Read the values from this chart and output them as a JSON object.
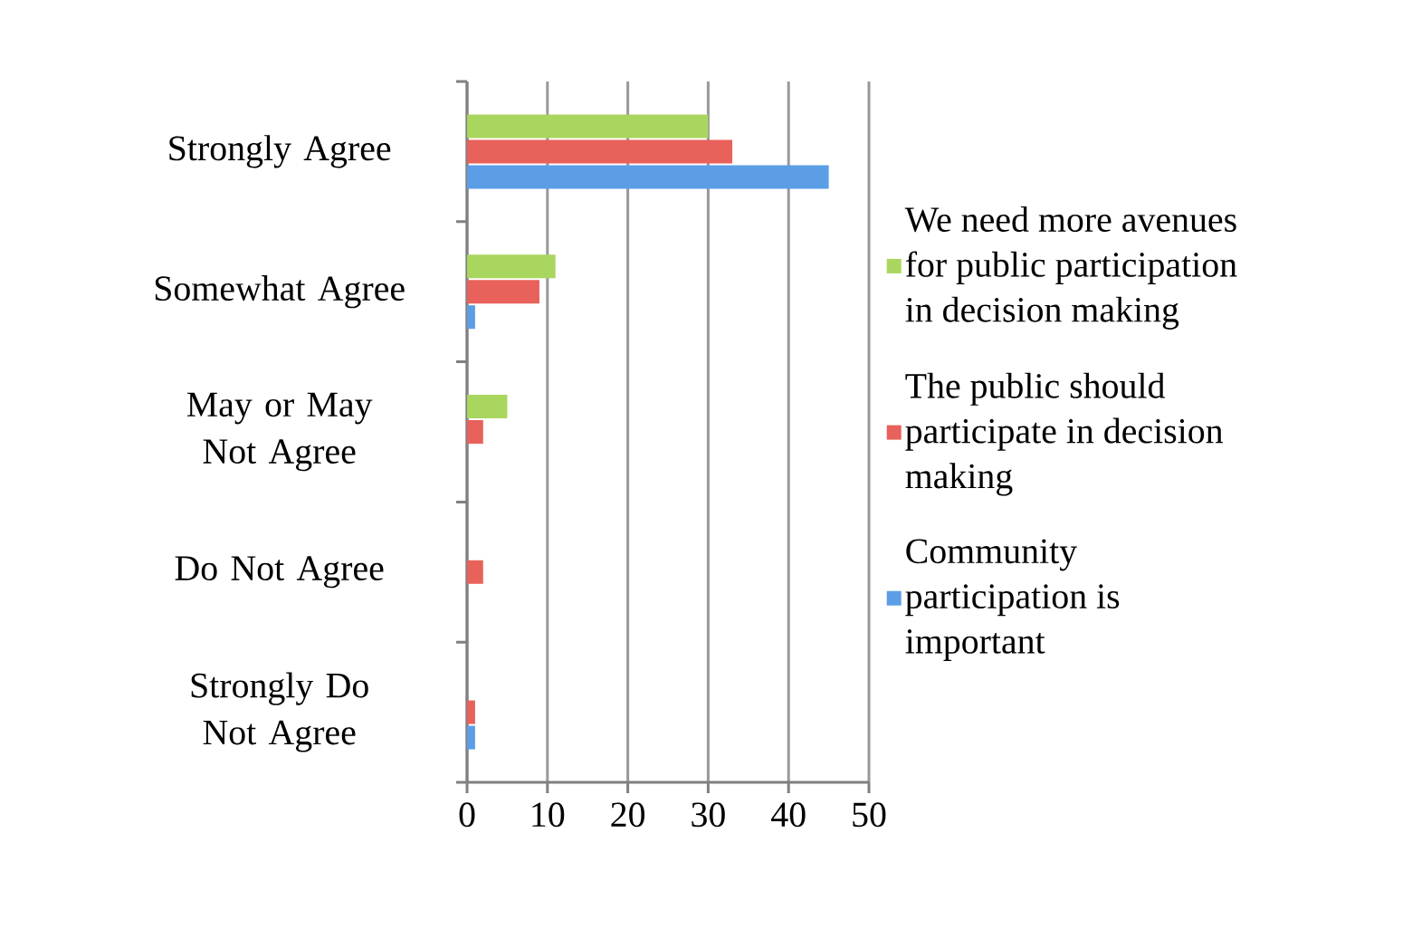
{
  "chart_data": {
    "type": "bar",
    "orientation": "horizontal",
    "categories": [
      "Strongly Agree",
      "Somewhat Agree",
      "May or May Not Agree",
      "Do Not Agree",
      "Strongly Do Not Agree"
    ],
    "series": [
      {
        "name": "We need more avenues for public participation in decision making",
        "color": "#a9d65e",
        "values": [
          30,
          11,
          5,
          0,
          0
        ]
      },
      {
        "name": "The public should participate in decision making",
        "color": "#e8615a",
        "values": [
          33,
          9,
          2,
          2,
          1
        ]
      },
      {
        "name": "Community participation is important",
        "color": "#5b9ee6",
        "values": [
          45,
          1,
          0,
          0,
          1
        ]
      }
    ],
    "xlim": [
      0,
      50
    ],
    "xticks": [
      0,
      10,
      20,
      30,
      40,
      50
    ],
    "grid": "x",
    "legend": "right"
  }
}
